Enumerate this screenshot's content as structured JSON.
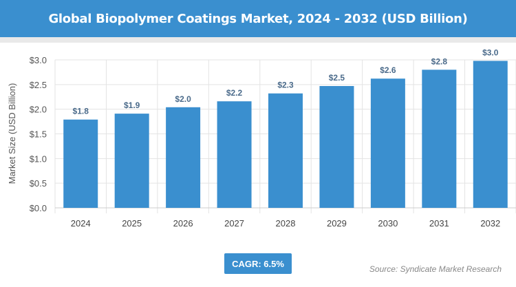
{
  "chart_data": {
    "type": "bar",
    "title": "Global Biopolymer Coatings Market, 2024 - 2032 (USD Billion)",
    "xlabel": "",
    "ylabel": "Market Size (USD Billion)",
    "categories": [
      "2024",
      "2025",
      "2026",
      "2027",
      "2028",
      "2029",
      "2030",
      "2031",
      "2032"
    ],
    "values": [
      1.79,
      1.91,
      2.04,
      2.16,
      2.32,
      2.47,
      2.62,
      2.8,
      2.98
    ],
    "data_labels": [
      "$1.8",
      "$1.9",
      "$2.0",
      "$2.2",
      "$2.3",
      "$2.5",
      "$2.6",
      "$2.8",
      "$3.0"
    ],
    "ylim": [
      0,
      3.0
    ],
    "yticks": [
      "$0.0",
      "$0.5",
      "$1.0",
      "$1.5",
      "$2.0",
      "$2.5",
      "$3.0"
    ],
    "grid": true,
    "bar_color": "#3a8fcf"
  },
  "cagr": "CAGR: 6.5%",
  "source": "Source: Syndicate Market Research"
}
